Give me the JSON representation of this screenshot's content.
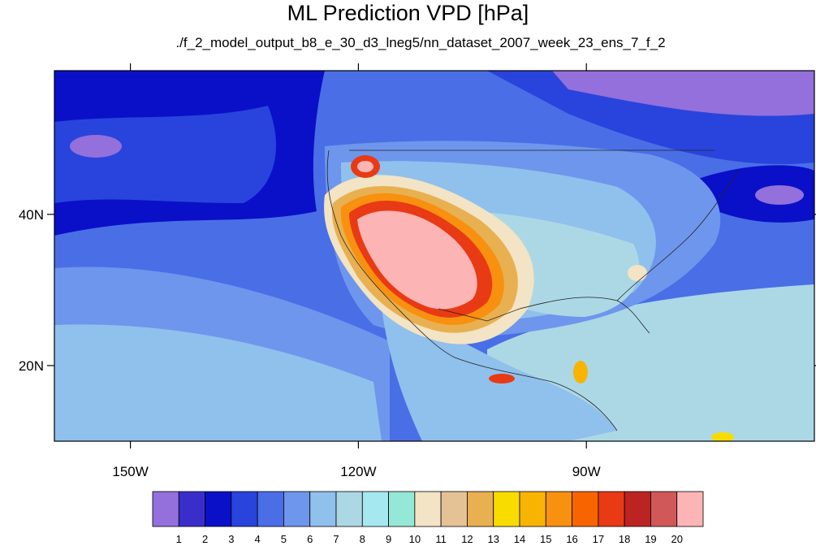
{
  "title": "ML Prediction VPD [hPa]",
  "subtitle": "./f_2_model_output_b8_e_30_d3_lneg5/nn_dataset_2007_week_23_ens_7_f_2",
  "axes": {
    "lon_ticks": [
      {
        "label": "150W",
        "lon": -150
      },
      {
        "label": "120W",
        "lon": -120
      },
      {
        "label": "90W",
        "lon": -90
      }
    ],
    "lat_ticks": [
      {
        "label": "40N",
        "lat": 40
      },
      {
        "label": "20N",
        "lat": 20
      }
    ]
  },
  "colorbar": {
    "colors": [
      "#9370DB",
      "#3A2ECB",
      "#0A10C8",
      "#2844DC",
      "#4A6EE6",
      "#6E96EC",
      "#90C0EC",
      "#ACD8E6",
      "#A6E8F0",
      "#96E8D6",
      "#F2E4C4",
      "#E4C296",
      "#E8B050",
      "#F8DC00",
      "#F8B400",
      "#F89010",
      "#F86400",
      "#E83A14",
      "#BC2424",
      "#D05858",
      "#FCB4B4"
    ],
    "labels": [
      "1",
      "2",
      "3",
      "4",
      "5",
      "6",
      "7",
      "8",
      "9",
      "10",
      "11",
      "12",
      "13",
      "14",
      "15",
      "16",
      "17",
      "18",
      "19",
      "20"
    ]
  }
}
